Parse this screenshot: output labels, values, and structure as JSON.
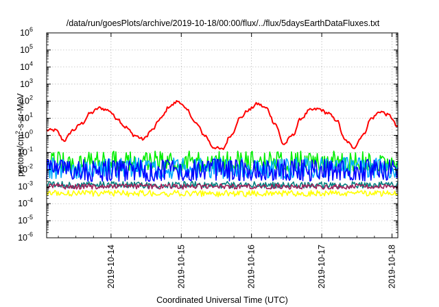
{
  "chart_data": {
    "type": "line",
    "title": "/data/run/goesPlots/archive/2019-10-18/00:00/flux/../flux/5daysEarthDataFluxes.txt",
    "xlabel": "Coordinated Universal Time (UTC)",
    "ylabel": {
      "prefix": "protons/cm",
      "sup": "2",
      "suffix": "-s-sr-MeV"
    },
    "yscale": "log",
    "ylim": [
      1e-06,
      1000000.0
    ],
    "y_ticks": [
      {
        "base": "10",
        "exp": "-6"
      },
      {
        "base": "10",
        "exp": "-5"
      },
      {
        "base": "10",
        "exp": "-4"
      },
      {
        "base": "10",
        "exp": "-3"
      },
      {
        "base": "10",
        "exp": "-2"
      },
      {
        "base": "10",
        "exp": "-1"
      },
      {
        "base": "10",
        "exp": "0"
      },
      {
        "base": "10",
        "exp": "1"
      },
      {
        "base": "10",
        "exp": "2"
      },
      {
        "base": "10",
        "exp": "3"
      },
      {
        "base": "10",
        "exp": "4"
      },
      {
        "base": "10",
        "exp": "5"
      },
      {
        "base": "10",
        "exp": "6"
      }
    ],
    "xlim": [
      "2019-10-13T02:00",
      "2019-10-18T02:00"
    ],
    "x_ticks": [
      "2019-10-14",
      "2019-10-15",
      "2019-10-16",
      "2019-10-17",
      "2019-10-18"
    ],
    "grid": true,
    "series": [
      {
        "color": "#ff0000",
        "style": "smooth",
        "x": [
          "2019-10-13T02:00",
          "2019-10-13T05:00",
          "2019-10-13T08:00",
          "2019-10-13T11:00",
          "2019-10-13T14:00",
          "2019-10-13T17:00",
          "2019-10-13T20:00",
          "2019-10-13T23:00",
          "2019-10-14T02:00",
          "2019-10-14T05:00",
          "2019-10-14T08:00",
          "2019-10-14T11:00",
          "2019-10-14T14:00",
          "2019-10-14T17:00",
          "2019-10-14T20:00",
          "2019-10-14T23:00",
          "2019-10-15T02:00",
          "2019-10-15T05:00",
          "2019-10-15T08:00",
          "2019-10-15T11:00",
          "2019-10-15T14:00",
          "2019-10-15T17:00",
          "2019-10-15T20:00",
          "2019-10-15T23:00",
          "2019-10-16T02:00",
          "2019-10-16T05:00",
          "2019-10-16T08:00",
          "2019-10-16T11:00",
          "2019-10-16T14:00",
          "2019-10-16T17:00",
          "2019-10-16T20:00",
          "2019-10-16T23:00",
          "2019-10-17T02:00",
          "2019-10-17T05:00",
          "2019-10-17T08:00",
          "2019-10-17T11:00",
          "2019-10-17T14:00",
          "2019-10-17T17:00",
          "2019-10-17T20:00",
          "2019-10-17T23:00",
          "2019-10-18T02:00"
        ],
        "y": [
          2,
          2,
          0.5,
          2,
          5,
          20,
          40,
          30,
          10,
          3,
          1,
          0.6,
          2,
          10,
          50,
          100,
          30,
          5,
          1,
          0.2,
          0.15,
          1,
          10,
          30,
          70,
          40,
          5,
          0.3,
          1,
          10,
          30,
          35,
          20,
          8,
          0.5,
          0.2,
          1,
          10,
          25,
          15,
          3
        ]
      },
      {
        "color": "#00ee00",
        "style": "noisy",
        "x": [
          "2019-10-13T02:00",
          "2019-10-18T02:00"
        ],
        "y": [
          0.02,
          0.02
        ],
        "range": [
          0.008,
          0.12
        ]
      },
      {
        "color": "#00aaff",
        "style": "noisy",
        "x": [
          "2019-10-13T02:00",
          "2019-10-18T02:00"
        ],
        "y": [
          0.01,
          0.01
        ],
        "range": [
          0.003,
          0.05
        ]
      },
      {
        "color": "#0000ff",
        "style": "noisy",
        "x": [
          "2019-10-13T02:00",
          "2019-10-18T02:00"
        ],
        "y": [
          0.008,
          0.008
        ],
        "range": [
          0.002,
          0.04
        ]
      },
      {
        "color": "#008080",
        "style": "noisy",
        "x": [
          "2019-10-13T02:00",
          "2019-10-18T02:00"
        ],
        "y": [
          0.0012,
          0.0012
        ],
        "range": [
          0.0008,
          0.002
        ]
      },
      {
        "color": "#ffff00",
        "style": "noisy",
        "x": [
          "2019-10-13T02:00",
          "2019-10-18T02:00"
        ],
        "y": [
          0.0004,
          0.0004
        ],
        "range": [
          0.00025,
          0.0006
        ]
      },
      {
        "color": "#a0205a",
        "style": "noisy",
        "x": [
          "2019-10-13T02:00",
          "2019-10-18T02:00"
        ],
        "y": [
          0.001,
          0.001
        ],
        "range": [
          0.0007,
          0.0015
        ]
      }
    ]
  }
}
